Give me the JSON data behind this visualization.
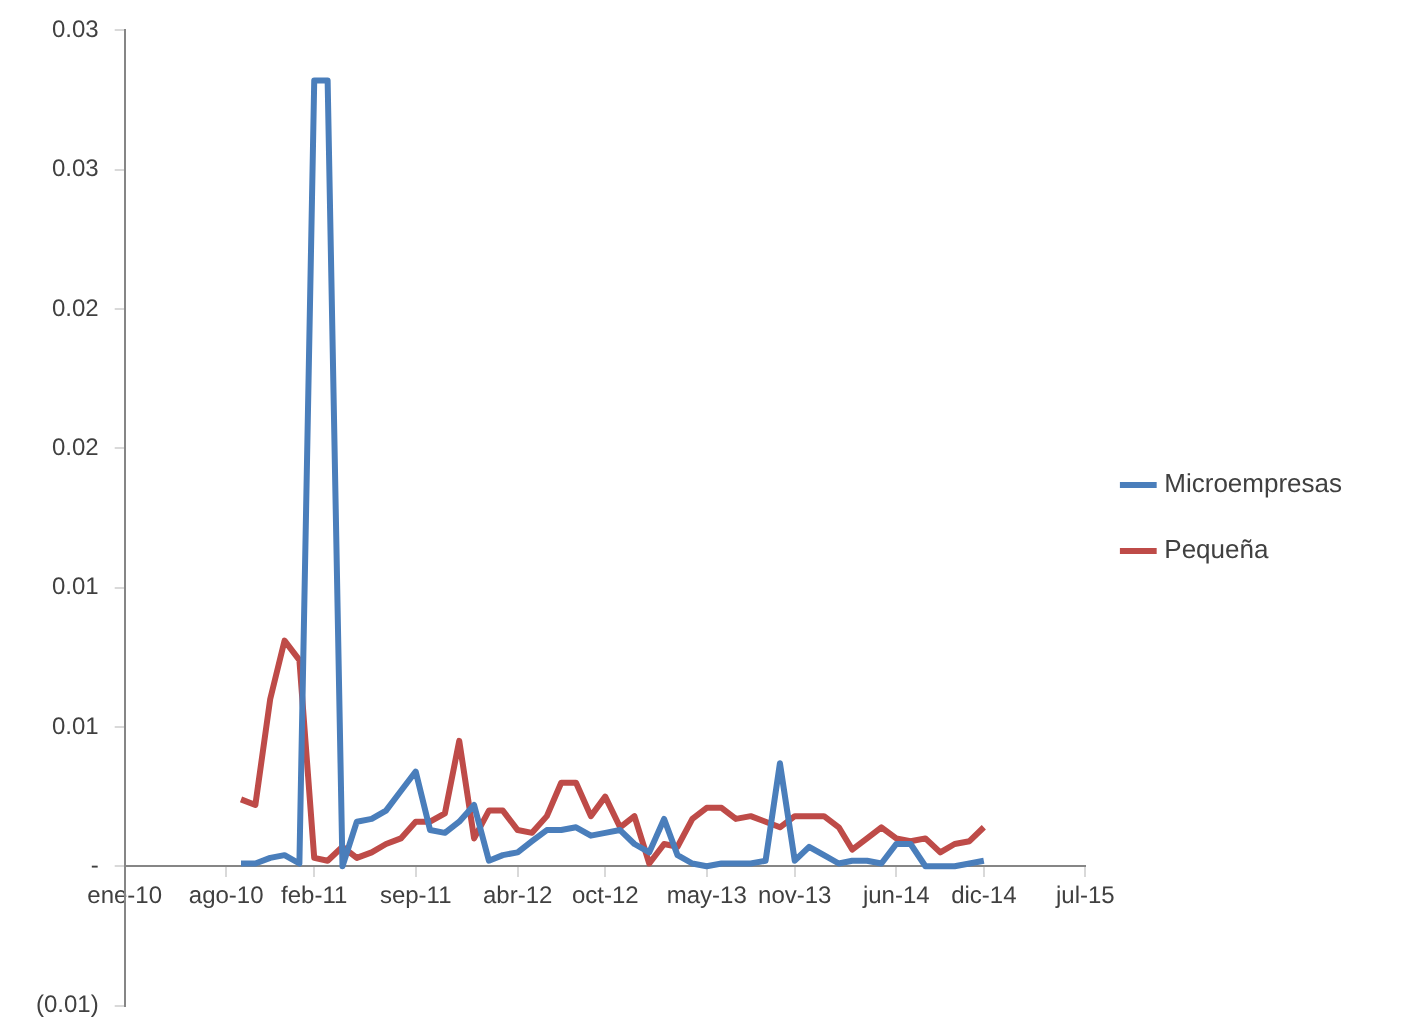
{
  "chart_data": {
    "type": "line",
    "x": [
      "2010-09",
      "2010-10",
      "2010-11",
      "2010-12",
      "2011-01",
      "2011-02",
      "2011-03",
      "2011-04",
      "2011-05",
      "2011-06",
      "2011-07",
      "2011-08",
      "2011-09",
      "2011-10",
      "2011-11",
      "2011-12",
      "2012-01",
      "2012-02",
      "2012-03",
      "2012-04",
      "2012-05",
      "2012-06",
      "2012-07",
      "2012-08",
      "2012-09",
      "2012-10",
      "2012-11",
      "2012-12",
      "2013-01",
      "2013-02",
      "2013-03",
      "2013-04",
      "2013-05",
      "2013-06",
      "2013-07",
      "2013-08",
      "2013-09",
      "2013-10",
      "2013-11",
      "2013-12",
      "2014-01",
      "2014-02",
      "2014-03",
      "2014-04",
      "2014-05",
      "2014-06",
      "2014-07",
      "2014-08",
      "2014-09",
      "2014-10",
      "2014-11",
      "2014-12"
    ],
    "series": [
      {
        "name": "Microempresas",
        "color": "#4a7ebb",
        "values": [
          0.0001,
          0.0001,
          0.0003,
          0.0004,
          0.0001,
          0.0282,
          0.0282,
          0.0,
          0.0016,
          0.0017,
          0.002,
          0.0027,
          0.0034,
          0.0013,
          0.0012,
          0.0016,
          0.0022,
          0.0002,
          0.0004,
          0.0005,
          0.0009,
          0.0013,
          0.0013,
          0.0014,
          0.0011,
          0.0012,
          0.0013,
          0.0008,
          0.0005,
          0.0017,
          0.0004,
          0.0001,
          0.0,
          0.0001,
          0.0001,
          0.0001,
          0.0002,
          0.0037,
          0.0002,
          0.0007,
          0.0004,
          0.0001,
          0.0002,
          0.0002,
          0.0001,
          0.0008,
          0.0008,
          0.0,
          0.0,
          0.0,
          0.0001,
          0.0002
        ]
      },
      {
        "name": "Pequeña",
        "color": "#be4b48",
        "values": [
          0.0024,
          0.0022,
          0.006,
          0.0081,
          0.0074,
          0.0003,
          0.0002,
          0.0007,
          0.0003,
          0.0005,
          0.0008,
          0.001,
          0.0016,
          0.0016,
          0.0019,
          0.0045,
          0.001,
          0.002,
          0.002,
          0.0013,
          0.0012,
          0.0018,
          0.003,
          0.003,
          0.0018,
          0.0025,
          0.0014,
          0.0018,
          0.0001,
          0.0008,
          0.0007,
          0.0017,
          0.0021,
          0.0021,
          0.0017,
          0.0018,
          0.0016,
          0.0014,
          0.0018,
          0.0018,
          0.0018,
          0.0014,
          0.0006,
          0.001,
          0.0014,
          0.001,
          0.0009,
          0.001,
          0.0005,
          0.0008,
          0.0009,
          0.0014
        ]
      }
    ],
    "xlim": [
      "2010-01-01",
      "2015-07-01"
    ],
    "xticks": [
      {
        "value": "2010-01-01",
        "label": "ene-10"
      },
      {
        "value": "2010-08-01",
        "label": "ago-10"
      },
      {
        "value": "2011-02-01",
        "label": "feb-11"
      },
      {
        "value": "2011-09-01",
        "label": "sep-11"
      },
      {
        "value": "2012-04-01",
        "label": "abr-12"
      },
      {
        "value": "2012-10-01",
        "label": "oct-12"
      },
      {
        "value": "2013-05-01",
        "label": "may-13"
      },
      {
        "value": "2013-11-01",
        "label": "nov-13"
      },
      {
        "value": "2014-06-01",
        "label": "jun-14"
      },
      {
        "value": "2014-12-01",
        "label": "dic-14"
      },
      {
        "value": "2015-07-01",
        "label": "jul-15"
      }
    ],
    "ylim": [
      -0.005,
      0.03
    ],
    "yticks": [
      {
        "value": -0.005,
        "label": "(0.01)"
      },
      {
        "value": 0,
        "label": "-"
      },
      {
        "value": 0.005,
        "label": "0.01"
      },
      {
        "value": 0.01,
        "label": "0.01"
      },
      {
        "value": 0.015,
        "label": "0.02"
      },
      {
        "value": 0.02,
        "label": "0.02"
      },
      {
        "value": 0.025,
        "label": "0.03"
      },
      {
        "value": 0.03,
        "label": "0.03"
      }
    ],
    "grid": false,
    "legend": "right",
    "marker": "none",
    "line_style": "solid"
  }
}
